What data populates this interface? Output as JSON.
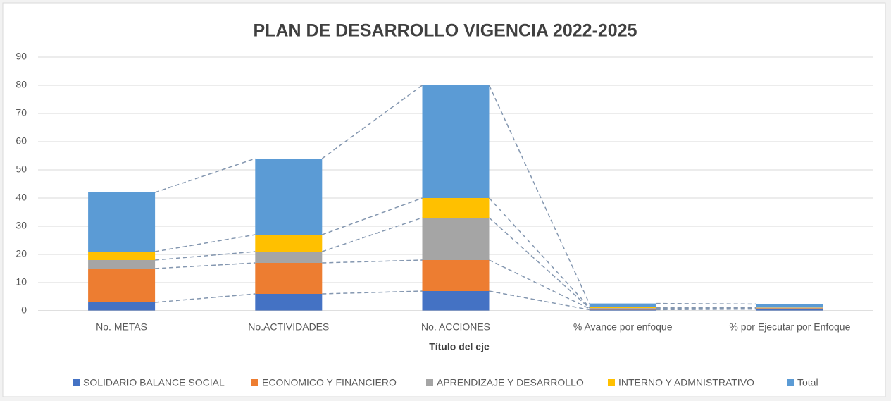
{
  "chart_data": {
    "type": "stacked_bar",
    "title": "PLAN DE DESARROLLO VIGENCIA 2022-2025",
    "x_label": "Título del eje",
    "categories": [
      "No. METAS",
      "No.ACTIVIDADES",
      "No. ACCIONES",
      "% Avance por enfoque",
      "% por Ejecutar por Enfoque"
    ],
    "series": [
      {
        "name": "SOLIDARIO BALANCE SOCIAL",
        "color": "#4472c4",
        "values": [
          3,
          6,
          7,
          0.4,
          0.6
        ]
      },
      {
        "name": "ECONOMICO Y FINANCIERO",
        "color": "#ed7d31",
        "values": [
          12,
          11,
          11,
          0.4,
          0.3
        ]
      },
      {
        "name": "APRENDIZAJE Y DESARROLLO",
        "color": "#a5a5a5",
        "values": [
          3,
          4,
          15,
          0.2,
          0.2
        ]
      },
      {
        "name": "INTERNO Y ADMNISTRATIVO",
        "color": "#ffc000",
        "values": [
          3,
          6,
          7,
          0.3,
          0.1
        ]
      },
      {
        "name": "Total",
        "color": "#5b9bd5",
        "values": [
          21,
          27,
          40,
          1.3,
          1.2
        ]
      }
    ],
    "ylim": [
      0,
      90
    ],
    "yticks": [
      0,
      10,
      20,
      30,
      40,
      50,
      60,
      70,
      80,
      90
    ],
    "grid": true,
    "series_lines": true,
    "legend": "bottom"
  }
}
